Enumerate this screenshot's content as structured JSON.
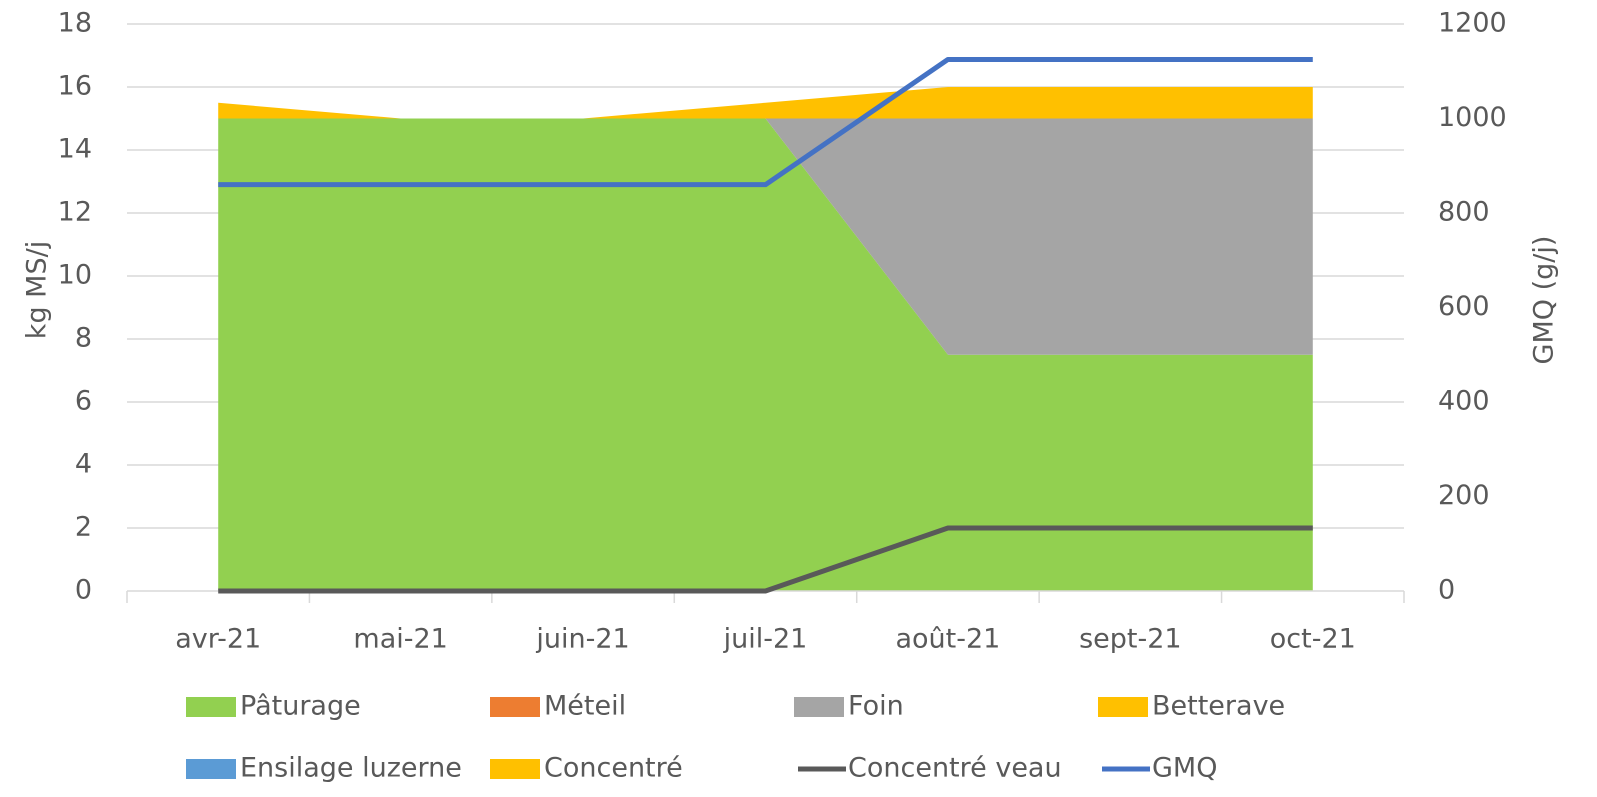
{
  "chart_data": {
    "type": "area",
    "y_label": "kg MS/j",
    "y2_label": "GMQ (g/j)",
    "categories": [
      "avr-21",
      "mai-21",
      "juin-21",
      "juil-21",
      "août-21",
      "sept-21",
      "oct-21"
    ],
    "series": [
      {
        "name": "Pâturage",
        "color": "#92d050",
        "values": [
          15,
          15,
          15,
          15,
          7.5,
          7.5,
          7.5
        ]
      },
      {
        "name": "Méteil",
        "color": "#ed7d31",
        "values": [
          0,
          0,
          0,
          0,
          0,
          0,
          0
        ]
      },
      {
        "name": "Foin",
        "color": "#a5a5a5",
        "values": [
          0,
          0,
          0,
          0,
          7.5,
          7.5,
          7.5
        ]
      },
      {
        "name": "Betterave",
        "color": "#ffc000",
        "values": [
          0,
          0,
          0,
          0,
          0,
          0,
          0
        ]
      },
      {
        "name": "Ensilage luzerne",
        "color": "#5b9bd5",
        "values": [
          0,
          0,
          0,
          0,
          0,
          0,
          0
        ]
      },
      {
        "name": "Concentré",
        "color": "#ffc000",
        "values": [
          0.5,
          0,
          0,
          0.5,
          1,
          1,
          1
        ]
      },
      {
        "name": "Concentré veau",
        "color": "#595959",
        "kind": "line",
        "values": [
          0,
          0,
          0,
          0,
          2,
          2,
          2
        ]
      },
      {
        "name": "GMQ",
        "color": "#4472c4",
        "kind": "line",
        "axis": "y2",
        "values": [
          860,
          860,
          860,
          860,
          1125,
          1125,
          1125
        ]
      }
    ],
    "ylim": [
      0,
      18
    ],
    "yticks": [
      0,
      2,
      4,
      6,
      8,
      10,
      12,
      14,
      16,
      18
    ],
    "y2lim": [
      0,
      1200
    ],
    "y2ticks": [
      0,
      200,
      400,
      600,
      800,
      1000,
      1200
    ],
    "grid": true,
    "legend": "bottom"
  }
}
